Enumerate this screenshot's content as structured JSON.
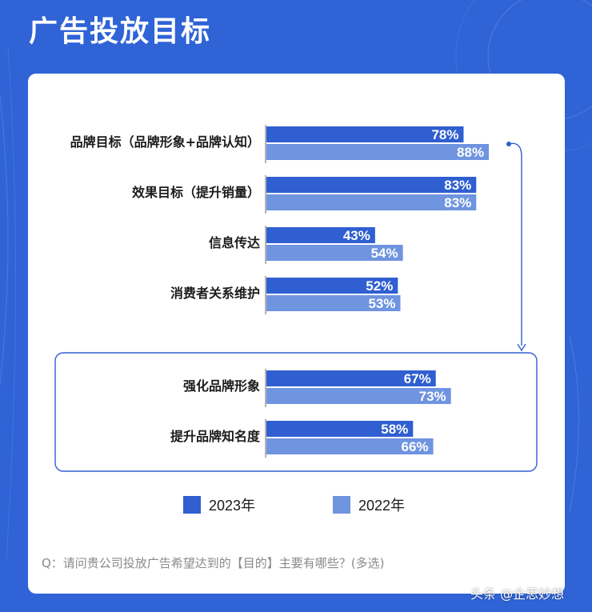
{
  "header": {
    "title": "广告投放目标"
  },
  "colors": {
    "background": "#2f63d6",
    "series_2023": "#2f5fd0",
    "series_2022": "#6f94e0",
    "highlight_border": "#2f5fd0"
  },
  "chart_data": {
    "type": "bar",
    "orientation": "horizontal",
    "title": "",
    "categories": [
      "品牌目标（品牌形象+品牌认知）",
      "效果目标（提升销量）",
      "信息传达",
      "消费者关系维护",
      "强化品牌形象",
      "提升品牌知名度"
    ],
    "series": [
      {
        "name": "2023年",
        "values": [
          78,
          83,
          43,
          52,
          67,
          58
        ],
        "labels": [
          "78%",
          "83%",
          "43%",
          "52%",
          "67%",
          "58%"
        ]
      },
      {
        "name": "2022年",
        "values": [
          88,
          83,
          54,
          53,
          73,
          66
        ],
        "labels": [
          "88%",
          "83%",
          "54%",
          "53%",
          "73%",
          "66%"
        ]
      }
    ],
    "xlim": [
      0,
      100
    ],
    "unit": "%",
    "grid": false,
    "legend_position": "bottom",
    "highlighted_categories": [
      "强化品牌形象",
      "提升品牌知名度"
    ]
  },
  "legend": {
    "item_2023": "2023年",
    "item_2022": "2022年"
  },
  "footer": {
    "question": "Q：请问贵公司投放广告希望达到的【目的】主要有哪些？(多选)"
  },
  "watermark": {
    "text": "头条 @企思妙想"
  }
}
